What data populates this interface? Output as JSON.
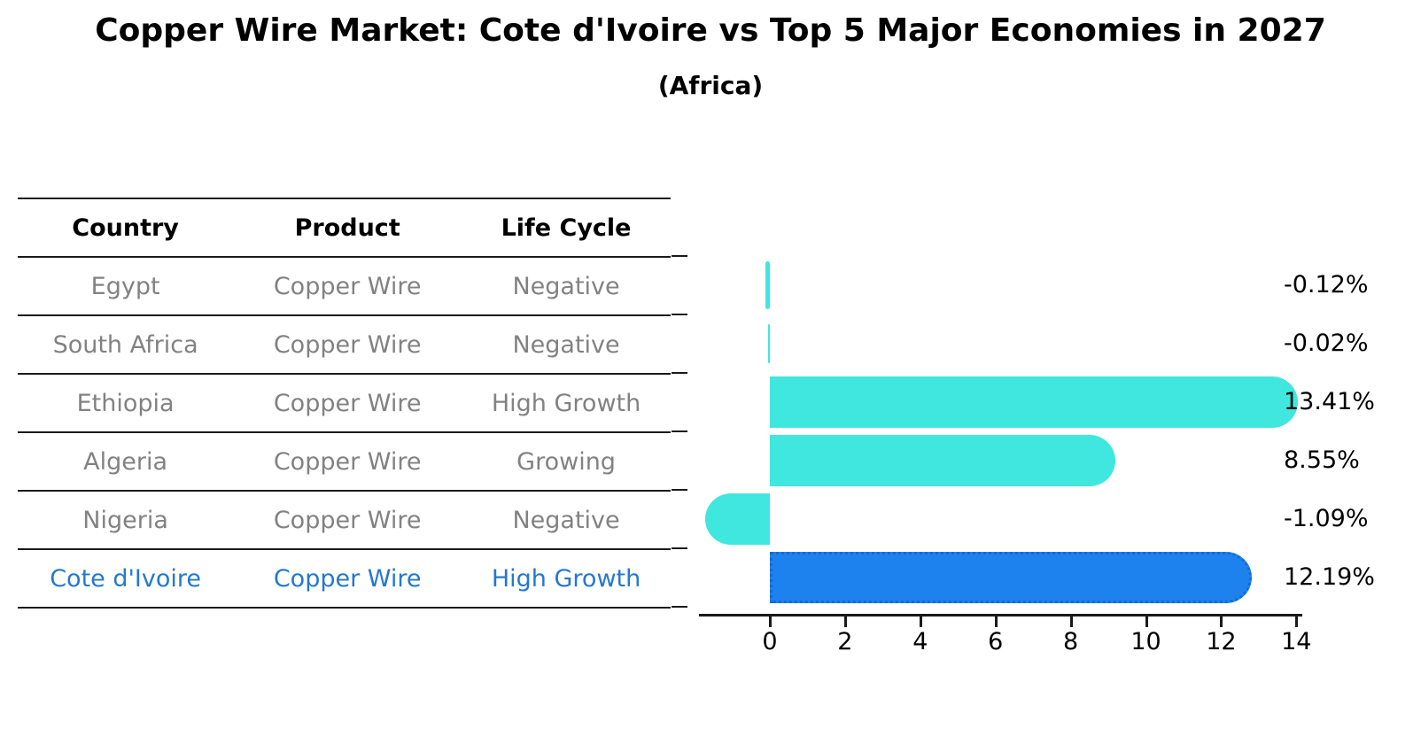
{
  "title": "Copper Wire Market: Cote d'Ivoire vs Top 5 Major Economies in 2027",
  "subtitle": "(Africa)",
  "table": {
    "headers": [
      "Country",
      "Product",
      "Life Cycle"
    ],
    "rows": [
      {
        "country": "Egypt",
        "product": "Copper Wire",
        "life_cycle": "Negative",
        "highlight": false
      },
      {
        "country": "South Africa",
        "product": "Copper Wire",
        "life_cycle": "Negative",
        "highlight": false
      },
      {
        "country": "Ethiopia",
        "product": "Copper Wire",
        "life_cycle": "High Growth",
        "highlight": false
      },
      {
        "country": "Algeria",
        "product": "Copper Wire",
        "life_cycle": "Growing",
        "highlight": false
      },
      {
        "country": "Nigeria",
        "product": "Copper Wire",
        "life_cycle": "Negative",
        "highlight": false
      },
      {
        "country": "Cote d'Ivoire",
        "product": "Copper Wire",
        "life_cycle": "High Growth",
        "highlight": true
      }
    ]
  },
  "chart_data": {
    "type": "bar",
    "orientation": "horizontal",
    "title": "Copper Wire Market: Cote d'Ivoire vs Top 5 Major Economies in 2027",
    "subtitle": "(Africa)",
    "categories": [
      "Egypt",
      "South Africa",
      "Ethiopia",
      "Algeria",
      "Nigeria",
      "Cote d'Ivoire"
    ],
    "values": [
      -0.12,
      -0.02,
      13.41,
      8.55,
      -1.09,
      12.19
    ],
    "value_labels": [
      "-0.12%",
      "-0.02%",
      "13.41%",
      "8.55%",
      "-1.09%",
      "12.19%"
    ],
    "xlabel": "",
    "ylabel": "",
    "xlim": [
      -1.9,
      14.1
    ],
    "x_ticks": [
      0,
      2,
      4,
      6,
      8,
      10,
      12,
      14
    ],
    "x_tick_labels": [
      "0",
      "2",
      "4",
      "6",
      "8",
      "10",
      "12",
      "14"
    ],
    "grid": false,
    "legend": "none",
    "bar_color": "#3FE7DF",
    "highlight_bar_color": "#1E82EE",
    "highlight_bar_border": "#1668D9",
    "highlight_category": "Cote d'Ivoire",
    "highlight_text_color": "#2478CF"
  },
  "colors": {
    "background": "#FFFFFF",
    "text": "#000000",
    "table_text": "#828282",
    "rule": "#1A1A1A"
  }
}
